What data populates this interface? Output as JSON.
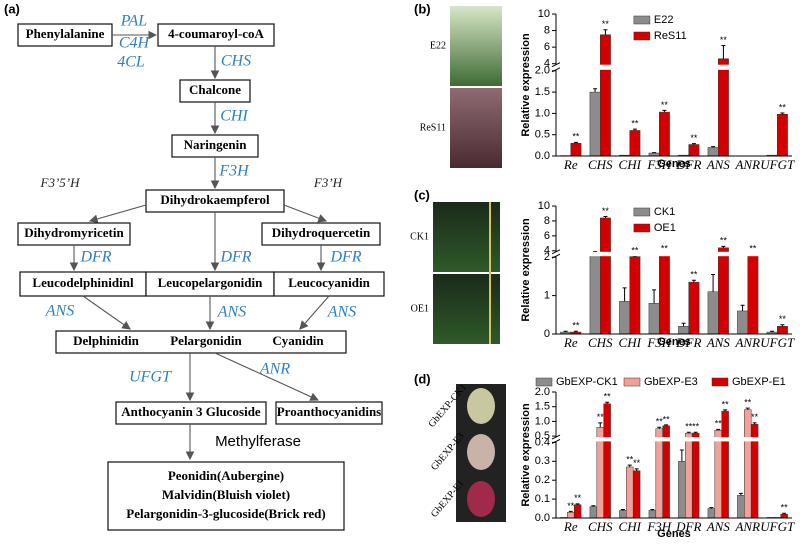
{
  "panels": [
    "(a)",
    "(b)",
    "(c)",
    "(d)"
  ],
  "pathway": {
    "nodes": [
      "Phenylalanine",
      "4-coumaroyl-coA",
      "Chalcone",
      "Naringenin",
      "Dihydrokaempferol",
      "Dihydromyricetin",
      "Dihydroquercetin",
      "Leucodelphinidinl",
      "Leucopelargonidin",
      "Leucocyanidin",
      "Delphinidin",
      "Pelargonidin",
      "Cyanidin",
      "Anthocyanin 3 Glucoside",
      "Proanthocyanidins",
      "Methylferase",
      "Peonidin(Aubergine)",
      "Malvidin(Bluish violet)",
      "Pelargonidin-3-glucoside(Brick red)"
    ],
    "enzymes": [
      "PAL",
      "C4H",
      "4CL",
      "CHS",
      "CHI",
      "F3H",
      "F3’5’H",
      "F3’H",
      "DFR",
      "DFR",
      "DFR",
      "ANS",
      "ANS",
      "ANS",
      "UFGT",
      "ANR"
    ]
  },
  "photo_labels": [
    "E22",
    "ReS11",
    "CK1",
    "OE1",
    "GbEXP-CK1",
    "GbEXP-E3",
    "GbEXP-E1"
  ],
  "chart_data": [
    {
      "type": "bar",
      "ylabel": "Relative expression",
      "xlabel": "Genes",
      "legend": "upper-center",
      "categories": [
        "Re",
        "CHS",
        "CHI",
        "F3H",
        "DFR",
        "ANS",
        "ANR",
        "UFGT"
      ],
      "ylim": [
        0,
        10
      ],
      "ybreak": [
        2,
        4
      ],
      "yticks": [
        {
          "value": 0,
          "label": "0.0"
        },
        {
          "value": 0.5,
          "label": "0.5"
        },
        {
          "value": 1,
          "label": "1.0"
        },
        {
          "value": 1.5,
          "label": "1.5"
        },
        {
          "value": 2,
          "label": "2.0"
        },
        4,
        6,
        8,
        10
      ],
      "series": [
        {
          "name": "E22",
          "color": "#8c8c8c",
          "values": [
            0.01,
            1.5,
            0.02,
            0.07,
            0.02,
            0.2,
            0,
            0.02
          ],
          "errors": [
            0,
            0.08,
            0,
            0.01,
            0,
            0.02,
            0,
            0
          ],
          "significance": [
            null,
            null,
            null,
            null,
            null,
            null,
            null,
            null
          ]
        },
        {
          "name": "ReS11",
          "color": "#d40000",
          "values": [
            0.3,
            7.5,
            0.6,
            1.03,
            0.27,
            4.6,
            0,
            0.98
          ],
          "errors": [
            0.02,
            0.6,
            0.03,
            0.04,
            0.02,
            1.6,
            0,
            0.03
          ],
          "significance": [
            "**",
            "**",
            "**",
            "**",
            "**",
            "**",
            null,
            "**"
          ]
        }
      ]
    },
    {
      "type": "bar",
      "ylabel": "Relative expression",
      "xlabel": "Genes",
      "legend": "upper-center",
      "categories": [
        "Re",
        "CHS",
        "CHI",
        "F3H",
        "DFR",
        "ANS",
        "ANR",
        "UFGT"
      ],
      "ylim": [
        0,
        10
      ],
      "ybreak": [
        2,
        4
      ],
      "yticks": [
        0,
        1,
        2,
        4,
        6,
        8,
        10
      ],
      "series": [
        {
          "name": "CK1",
          "color": "#8c8c8c",
          "values": [
            0.05,
            3,
            0.85,
            0.8,
            0.2,
            1.1,
            0.6,
            0.05
          ],
          "errors": [
            0.02,
            0.8,
            0.35,
            0.35,
            0.08,
            0.45,
            0.15,
            0.02
          ],
          "significance": [
            null,
            null,
            null,
            null,
            null,
            null,
            null,
            null
          ]
        },
        {
          "name": "OE1",
          "color": "#d40000",
          "values": [
            0.05,
            8.4,
            2.2,
            2.8,
            1.35,
            4.4,
            2.9,
            0.2
          ],
          "errors": [
            0.02,
            0.2,
            0.06,
            0.1,
            0.05,
            0.2,
            0.1,
            0.04
          ],
          "significance": [
            "**",
            "**",
            "**",
            "**",
            "**",
            "**",
            "**",
            "**"
          ]
        }
      ]
    },
    {
      "type": "bar",
      "ylabel": "Relative expression",
      "xlabel": "Genes",
      "legend": "top",
      "categories": [
        "Re",
        "CHS",
        "CHI",
        "F3H",
        "DFR",
        "ANS",
        "ANR",
        "UFGT"
      ],
      "ylim": [
        0,
        2
      ],
      "ybreak": [
        0.4,
        0.5
      ],
      "yticks": [
        {
          "value": 0,
          "label": "0.0"
        },
        {
          "value": 0.1,
          "label": "0.1"
        },
        {
          "value": 0.2,
          "label": "0.2"
        },
        {
          "value": 0.3,
          "label": "0.3"
        },
        {
          "value": 0.4,
          "label": "0.4"
        },
        {
          "value": 0.5,
          "label": "0.5"
        },
        {
          "value": 1,
          "label": "1.0"
        },
        {
          "value": 1.5,
          "label": "1.5"
        },
        {
          "value": 2,
          "label": "2.0"
        }
      ],
      "series": [
        {
          "name": "GbEXP-CK1",
          "color": "#8c8c8c",
          "values": [
            0.003,
            0.06,
            0.04,
            0.04,
            0.3,
            0.05,
            0.12,
            0.003
          ],
          "errors": [
            0,
            0.005,
            0.005,
            0.005,
            0.06,
            0.005,
            0.01,
            0
          ],
          "significance": [
            null,
            null,
            null,
            null,
            null,
            null,
            null,
            null
          ]
        },
        {
          "name": "GbEXP-E3",
          "color": "#f2a09a",
          "values": [
            0.03,
            0.8,
            0.27,
            0.75,
            0.6,
            0.7,
            1.4,
            0.003
          ],
          "errors": [
            0.005,
            0.15,
            0.01,
            0.05,
            0.03,
            0.03,
            0.05,
            0
          ],
          "significance": [
            "**",
            "**",
            "**",
            "**",
            "**",
            "**",
            "**",
            null
          ]
        },
        {
          "name": "GbEXP-E1",
          "color": "#d40000",
          "values": [
            0.07,
            1.6,
            0.25,
            0.85,
            0.6,
            1.35,
            0.9,
            0.02
          ],
          "errors": [
            0.005,
            0.05,
            0.01,
            0.03,
            0.03,
            0.04,
            0.05,
            0.005
          ],
          "significance": [
            "**",
            "**",
            "**",
            "**",
            "**",
            "**",
            "**",
            "**"
          ]
        }
      ]
    }
  ]
}
